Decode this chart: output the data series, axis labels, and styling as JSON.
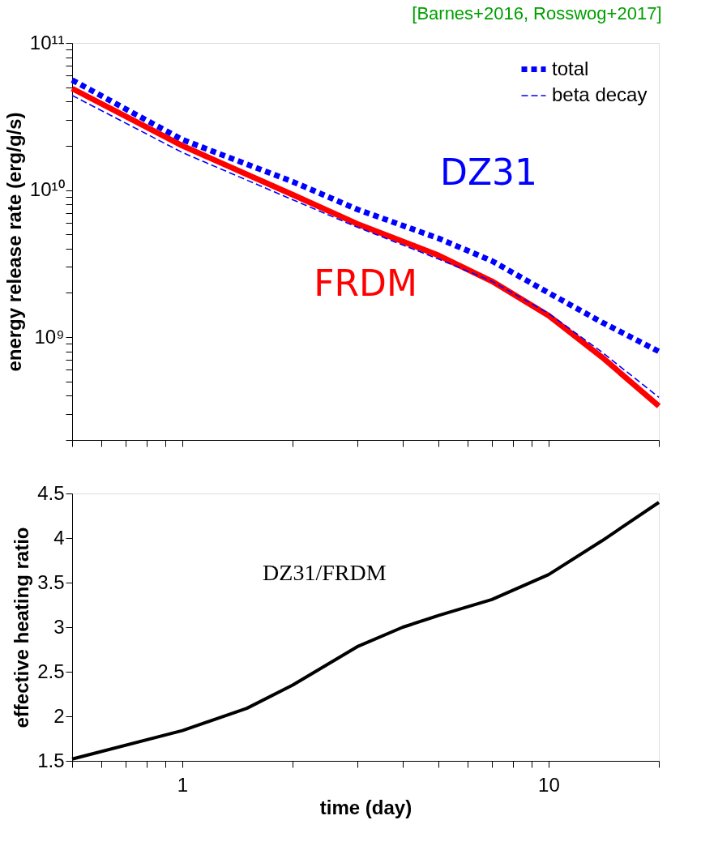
{
  "chart_data": [
    {
      "type": "line",
      "ylabel": "energy release rate (erg/g/s)",
      "log": "xy",
      "legend": "top right",
      "tick_labels": "y",
      "grid": false,
      "xlim": [
        0.5,
        20
      ],
      "xticks": [
        {
          "value": 0.5,
          "label": null
        },
        {
          "value": 0.6,
          "label": null
        },
        {
          "value": 0.7,
          "label": null
        },
        {
          "value": 0.8,
          "label": null
        },
        {
          "value": 0.9,
          "label": null
        },
        {
          "value": 1,
          "label": null
        },
        {
          "value": 2,
          "label": null
        },
        {
          "value": 3,
          "label": null
        },
        {
          "value": 4,
          "label": null
        },
        {
          "value": 5,
          "label": null
        },
        {
          "value": 6,
          "label": null
        },
        {
          "value": 7,
          "label": null
        },
        {
          "value": 8,
          "label": null
        },
        {
          "value": 9,
          "label": null
        },
        {
          "value": 10,
          "label": null
        },
        {
          "value": 20,
          "label": null
        }
      ],
      "ylim": [
        200000000.0,
        100000000000.0
      ],
      "yticks": [
        {
          "value": 200000000.0,
          "label": null
        },
        {
          "value": 300000000.0,
          "label": null
        },
        {
          "value": 400000000.0,
          "label": null
        },
        {
          "value": 500000000.0,
          "label": null
        },
        {
          "value": 600000000.0,
          "label": null
        },
        {
          "value": 700000000.0,
          "label": null
        },
        {
          "value": 800000000.0,
          "label": null
        },
        {
          "value": 900000000.0,
          "label": null
        },
        {
          "value": 1000000000.0,
          "label": "10⁹"
        },
        {
          "value": 2000000000.0,
          "label": null
        },
        {
          "value": 3000000000.0,
          "label": null
        },
        {
          "value": 4000000000.0,
          "label": null
        },
        {
          "value": 5000000000.0,
          "label": null
        },
        {
          "value": 6000000000.0,
          "label": null
        },
        {
          "value": 7000000000.0,
          "label": null
        },
        {
          "value": 8000000000.0,
          "label": null
        },
        {
          "value": 9000000000.0,
          "label": null
        },
        {
          "value": 10000000000.0,
          "label": "10¹⁰"
        },
        {
          "value": 20000000000.0,
          "label": null
        },
        {
          "value": 30000000000.0,
          "label": null
        },
        {
          "value": 40000000000.0,
          "label": null
        },
        {
          "value": 50000000000.0,
          "label": null
        },
        {
          "value": 60000000000.0,
          "label": null
        },
        {
          "value": 70000000000.0,
          "label": null
        },
        {
          "value": 80000000000.0,
          "label": null
        },
        {
          "value": 90000000000.0,
          "label": null
        },
        {
          "value": 100000000000.0,
          "label": "10¹¹"
        }
      ],
      "x": [
        0.5,
        1,
        2,
        3,
        5,
        7,
        10,
        14,
        20
      ],
      "series": [
        {
          "name": "FRDM",
          "color": "#ff0000",
          "line_style": "solid",
          "values": [
            49000000000.0,
            20000000000.0,
            9300000000.0,
            5900000000.0,
            3600000000.0,
            2400000000.0,
            1400000000.0,
            730000000.0,
            340000000.0
          ]
        },
        {
          "name": "total",
          "color": "#0000ff",
          "line_style": "dotted",
          "values": [
            56000000000.0,
            22000000000.0,
            11400000000.0,
            7400000000.0,
            4700000000.0,
            3300000000.0,
            2000000000.0,
            1260000000.0,
            800000000.0
          ]
        },
        {
          "name": "beta decay",
          "color": "#0000ff",
          "line_style": "dashed",
          "values": [
            44000000000.0,
            18000000000.0,
            8600000000.0,
            5600000000.0,
            3400000000.0,
            2400000000.0,
            1450000000.0,
            790000000.0,
            390000000.0
          ]
        }
      ],
      "annotations": [
        "[Barnes+2016, Rosswog+2017]",
        "DZ31"
      ]
    },
    {
      "type": "line",
      "xlabel": "time (day)",
      "ylabel": "effective heating ratio",
      "log": "x",
      "grid": false,
      "xlim": [
        0.5,
        20
      ],
      "xticks": [
        {
          "value": 0.5,
          "label": null
        },
        {
          "value": 0.6,
          "label": null
        },
        {
          "value": 0.7,
          "label": null
        },
        {
          "value": 0.8,
          "label": null
        },
        {
          "value": 0.9,
          "label": null
        },
        1,
        {
          "value": 2,
          "label": null
        },
        {
          "value": 3,
          "label": null
        },
        {
          "value": 4,
          "label": null
        },
        {
          "value": 5,
          "label": null
        },
        {
          "value": 6,
          "label": null
        },
        {
          "value": 7,
          "label": null
        },
        {
          "value": 8,
          "label": null
        },
        {
          "value": 9,
          "label": null
        },
        10,
        {
          "value": 20,
          "label": null
        }
      ],
      "ylim": [
        1.5,
        4.5
      ],
      "yticks": [
        1.5,
        2,
        2.5,
        3,
        3.5,
        4,
        4.5
      ],
      "x": [
        0.5,
        1,
        1.5,
        2,
        3,
        4,
        5,
        7,
        10,
        14,
        20
      ],
      "series": [
        {
          "color": "#000000",
          "line_style": "solid",
          "values": [
            1.52,
            1.84,
            2.09,
            2.35,
            2.78,
            3.0,
            3.13,
            3.31,
            3.59,
            3.97,
            4.4
          ]
        }
      ],
      "annotations": [
        "DZ31/FRDM"
      ]
    }
  ]
}
